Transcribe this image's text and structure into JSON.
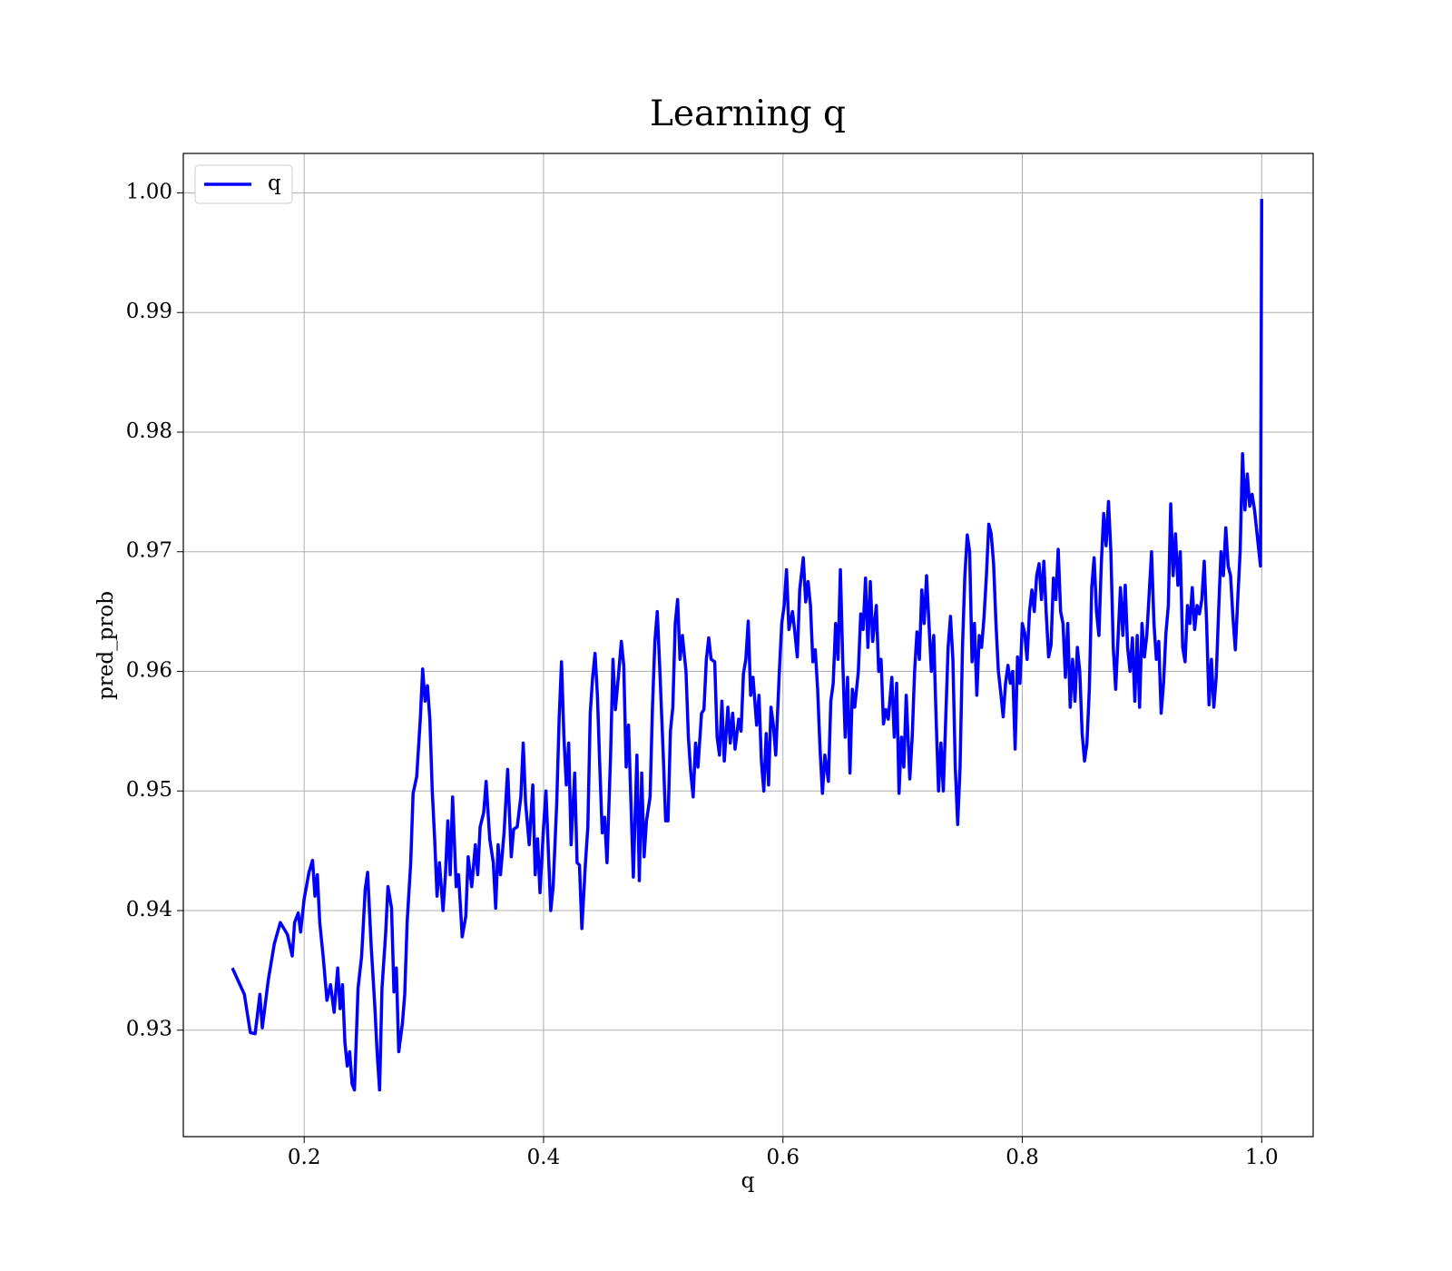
{
  "chart_data": {
    "type": "line",
    "title": "Learning q",
    "xlabel": "q",
    "ylabel": "pred_prob",
    "x": [
      0.14,
      0.15,
      0.155,
      0.159,
      0.163,
      0.165,
      0.17,
      0.175,
      0.18,
      0.186,
      0.19,
      0.192,
      0.195,
      0.197,
      0.2,
      0.204,
      0.207,
      0.209,
      0.211,
      0.213,
      0.216,
      0.219,
      0.222,
      0.225,
      0.228,
      0.23,
      0.232,
      0.234,
      0.236,
      0.238,
      0.24,
      0.242,
      0.245,
      0.248,
      0.251,
      0.253,
      0.256,
      0.259,
      0.261,
      0.263,
      0.265,
      0.268,
      0.27,
      0.273,
      0.275,
      0.277,
      0.279,
      0.282,
      0.284,
      0.286,
      0.289,
      0.291,
      0.294,
      0.297,
      0.299,
      0.301,
      0.303,
      0.305,
      0.307,
      0.309,
      0.311,
      0.313,
      0.316,
      0.318,
      0.32,
      0.322,
      0.324,
      0.327,
      0.329,
      0.332,
      0.335,
      0.337,
      0.34,
      0.343,
      0.345,
      0.347,
      0.35,
      0.352,
      0.355,
      0.358,
      0.36,
      0.362,
      0.364,
      0.367,
      0.37,
      0.373,
      0.375,
      0.378,
      0.381,
      0.383,
      0.385,
      0.388,
      0.391,
      0.393,
      0.395,
      0.397,
      0.4,
      0.402,
      0.404,
      0.406,
      0.408,
      0.411,
      0.413,
      0.415,
      0.417,
      0.419,
      0.421,
      0.423,
      0.426,
      0.428,
      0.43,
      0.432,
      0.435,
      0.437,
      0.439,
      0.441,
      0.443,
      0.445,
      0.447,
      0.449,
      0.451,
      0.453,
      0.456,
      0.458,
      0.46,
      0.462,
      0.465,
      0.467,
      0.469,
      0.471,
      0.473,
      0.475,
      0.478,
      0.48,
      0.482,
      0.484,
      0.486,
      0.489,
      0.491,
      0.493,
      0.495,
      0.497,
      0.5,
      0.502,
      0.504,
      0.506,
      0.508,
      0.51,
      0.512,
      0.514,
      0.516,
      0.519,
      0.521,
      0.523,
      0.525,
      0.527,
      0.529,
      0.532,
      0.534,
      0.536,
      0.538,
      0.54,
      0.543,
      0.545,
      0.547,
      0.549,
      0.551,
      0.554,
      0.556,
      0.558,
      0.56,
      0.563,
      0.565,
      0.567,
      0.569,
      0.571,
      0.573,
      0.575,
      0.578,
      0.58,
      0.582,
      0.584,
      0.586,
      0.588,
      0.59,
      0.592,
      0.594,
      0.597,
      0.599,
      0.601,
      0.603,
      0.605,
      0.608,
      0.61,
      0.612,
      0.614,
      0.617,
      0.619,
      0.621,
      0.623,
      0.625,
      0.627,
      0.629,
      0.631,
      0.633,
      0.635,
      0.638,
      0.64,
      0.642,
      0.644,
      0.646,
      0.648,
      0.65,
      0.652,
      0.654,
      0.656,
      0.658,
      0.66,
      0.663,
      0.665,
      0.667,
      0.669,
      0.671,
      0.673,
      0.675,
      0.678,
      0.68,
      0.682,
      0.684,
      0.686,
      0.688,
      0.691,
      0.693,
      0.695,
      0.697,
      0.699,
      0.701,
      0.703,
      0.706,
      0.708,
      0.71,
      0.712,
      0.714,
      0.716,
      0.718,
      0.72,
      0.722,
      0.724,
      0.726,
      0.728,
      0.73,
      0.732,
      0.734,
      0.736,
      0.738,
      0.74,
      0.742,
      0.744,
      0.746,
      0.748,
      0.75,
      0.752,
      0.754,
      0.756,
      0.758,
      0.76,
      0.762,
      0.764,
      0.766,
      0.768,
      0.77,
      0.772,
      0.774,
      0.776,
      0.778,
      0.78,
      0.782,
      0.784,
      0.786,
      0.788,
      0.79,
      0.792,
      0.794,
      0.796,
      0.798,
      0.8,
      0.802,
      0.804,
      0.806,
      0.808,
      0.81,
      0.812,
      0.814,
      0.816,
      0.818,
      0.82,
      0.822,
      0.824,
      0.826,
      0.828,
      0.83,
      0.832,
      0.834,
      0.836,
      0.838,
      0.84,
      0.842,
      0.844,
      0.846,
      0.848,
      0.85,
      0.852,
      0.854,
      0.856,
      0.858,
      0.86,
      0.862,
      0.864,
      0.866,
      0.868,
      0.87,
      0.872,
      0.874,
      0.876,
      0.878,
      0.88,
      0.882,
      0.884,
      0.886,
      0.888,
      0.89,
      0.892,
      0.894,
      0.896,
      0.898,
      0.9,
      0.902,
      0.904,
      0.906,
      0.908,
      0.91,
      0.912,
      0.914,
      0.916,
      0.918,
      0.92,
      0.922,
      0.924,
      0.926,
      0.928,
      0.93,
      0.932,
      0.934,
      0.936,
      0.938,
      0.94,
      0.942,
      0.944,
      0.946,
      0.948,
      0.95,
      0.952,
      0.954,
      0.956,
      0.958,
      0.96,
      0.962,
      0.964,
      0.966,
      0.968,
      0.97,
      0.972,
      0.974,
      0.976,
      0.978,
      0.98,
      0.982,
      0.984,
      0.986,
      0.988,
      0.99,
      0.992,
      0.994,
      0.999,
      1.0
    ],
    "series": [
      {
        "name": "q",
        "color": "#0000ff",
        "values": [
          0.9352,
          0.933,
          0.9298,
          0.9297,
          0.933,
          0.9302,
          0.9342,
          0.9372,
          0.939,
          0.938,
          0.9362,
          0.939,
          0.9398,
          0.9382,
          0.941,
          0.9432,
          0.9442,
          0.9412,
          0.943,
          0.939,
          0.936,
          0.9325,
          0.9338,
          0.9315,
          0.9352,
          0.9318,
          0.9338,
          0.929,
          0.927,
          0.9282,
          0.9255,
          0.925,
          0.9335,
          0.9362,
          0.9418,
          0.9432,
          0.937,
          0.932,
          0.928,
          0.925,
          0.9335,
          0.938,
          0.942,
          0.9402,
          0.9332,
          0.9352,
          0.9282,
          0.9305,
          0.933,
          0.939,
          0.944,
          0.9498,
          0.9512,
          0.956,
          0.9602,
          0.9575,
          0.9588,
          0.956,
          0.95,
          0.946,
          0.9412,
          0.944,
          0.94,
          0.943,
          0.9475,
          0.943,
          0.9495,
          0.942,
          0.943,
          0.9378,
          0.9395,
          0.9445,
          0.942,
          0.9455,
          0.943,
          0.947,
          0.9482,
          0.9508,
          0.946,
          0.944,
          0.9402,
          0.9455,
          0.943,
          0.9465,
          0.9518,
          0.9445,
          0.9468,
          0.947,
          0.9495,
          0.954,
          0.949,
          0.9455,
          0.9505,
          0.943,
          0.946,
          0.9415,
          0.947,
          0.95,
          0.945,
          0.94,
          0.942,
          0.949,
          0.956,
          0.9608,
          0.9545,
          0.9505,
          0.954,
          0.9455,
          0.9515,
          0.944,
          0.9438,
          0.9385,
          0.944,
          0.947,
          0.9565,
          0.9595,
          0.9615,
          0.958,
          0.952,
          0.9465,
          0.9478,
          0.944,
          0.953,
          0.961,
          0.9568,
          0.959,
          0.9625,
          0.9605,
          0.952,
          0.9555,
          0.949,
          0.9428,
          0.953,
          0.9425,
          0.9515,
          0.9445,
          0.9475,
          0.9495,
          0.957,
          0.9625,
          0.965,
          0.9605,
          0.953,
          0.9475,
          0.9475,
          0.955,
          0.957,
          0.964,
          0.966,
          0.961,
          0.963,
          0.96,
          0.9545,
          0.9515,
          0.9495,
          0.954,
          0.952,
          0.9565,
          0.9568,
          0.961,
          0.9628,
          0.961,
          0.9608,
          0.9545,
          0.953,
          0.9575,
          0.9525,
          0.957,
          0.954,
          0.9565,
          0.9535,
          0.956,
          0.955,
          0.9598,
          0.961,
          0.9642,
          0.958,
          0.9595,
          0.9555,
          0.958,
          0.9525,
          0.95,
          0.9548,
          0.9505,
          0.957,
          0.9555,
          0.953,
          0.96,
          0.964,
          0.9655,
          0.9685,
          0.9635,
          0.965,
          0.9632,
          0.9612,
          0.9668,
          0.9695,
          0.9658,
          0.9675,
          0.9655,
          0.9608,
          0.9618,
          0.9585,
          0.9535,
          0.9498,
          0.953,
          0.9508,
          0.9575,
          0.959,
          0.964,
          0.961,
          0.9685,
          0.9608,
          0.9545,
          0.9595,
          0.9515,
          0.9585,
          0.957,
          0.96,
          0.9648,
          0.9635,
          0.9678,
          0.962,
          0.9675,
          0.9625,
          0.9655,
          0.96,
          0.961,
          0.9556,
          0.9568,
          0.956,
          0.9595,
          0.9545,
          0.959,
          0.9498,
          0.9545,
          0.952,
          0.958,
          0.951,
          0.9545,
          0.96,
          0.9633,
          0.961,
          0.9668,
          0.964,
          0.968,
          0.964,
          0.96,
          0.963,
          0.956,
          0.95,
          0.954,
          0.95,
          0.956,
          0.962,
          0.9646,
          0.961,
          0.952,
          0.9472,
          0.952,
          0.962,
          0.968,
          0.9714,
          0.97,
          0.9608,
          0.964,
          0.958,
          0.963,
          0.962,
          0.9645,
          0.968,
          0.9723,
          0.9715,
          0.969,
          0.964,
          0.96,
          0.9582,
          0.9562,
          0.959,
          0.9605,
          0.959,
          0.96,
          0.9535,
          0.9612,
          0.959,
          0.964,
          0.9632,
          0.961,
          0.965,
          0.9668,
          0.965,
          0.968,
          0.969,
          0.966,
          0.9692,
          0.9648,
          0.9612,
          0.9622,
          0.9678,
          0.966,
          0.9702,
          0.965,
          0.964,
          0.9595,
          0.964,
          0.957,
          0.961,
          0.9575,
          0.962,
          0.96,
          0.9548,
          0.9525,
          0.954,
          0.9585,
          0.967,
          0.9695,
          0.965,
          0.963,
          0.969,
          0.9732,
          0.9705,
          0.9742,
          0.97,
          0.962,
          0.9585,
          0.9628,
          0.967,
          0.963,
          0.9672,
          0.962,
          0.96,
          0.9628,
          0.9575,
          0.963,
          0.957,
          0.964,
          0.9612,
          0.963,
          0.9665,
          0.97,
          0.964,
          0.961,
          0.9625,
          0.9565,
          0.959,
          0.9632,
          0.9655,
          0.974,
          0.968,
          0.9715,
          0.9672,
          0.97,
          0.962,
          0.9608,
          0.9655,
          0.964,
          0.967,
          0.9635,
          0.9655,
          0.9648,
          0.966,
          0.9692,
          0.964,
          0.9572,
          0.961,
          0.957,
          0.9595,
          0.965,
          0.97,
          0.968,
          0.972,
          0.9688,
          0.968,
          0.9645,
          0.9618,
          0.966,
          0.97,
          0.9782,
          0.9735,
          0.9765,
          0.9738,
          0.9748,
          0.9735,
          0.9688,
          0.9995
        ]
      }
    ],
    "xlim": [
      0.099,
      1.043
    ],
    "ylim": [
      0.9211,
      1.0033
    ],
    "xticks": [
      0.2,
      0.4,
      0.6,
      0.8,
      {
        "value": 1,
        "label": "1.0"
      }
    ],
    "yticks": [
      0.93,
      0.94,
      0.95,
      0.96,
      0.97,
      0.98,
      0.99,
      {
        "value": 1,
        "label": "1.00"
      }
    ],
    "grid": true,
    "legend": "upper left"
  }
}
